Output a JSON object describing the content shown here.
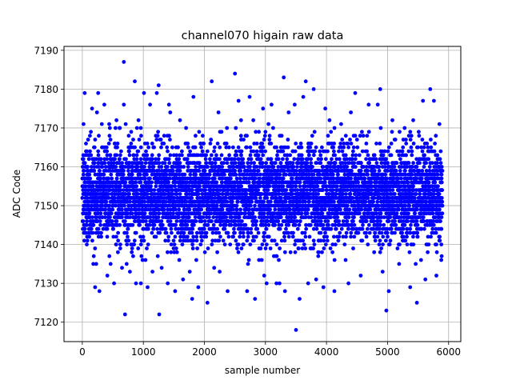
{
  "chart_data": {
    "type": "scatter",
    "title": "channel070 higain raw data",
    "xlabel": "sample number",
    "ylabel": "ADC Code",
    "xlim": [
      -300,
      6200
    ],
    "ylim": [
      7115,
      7191
    ],
    "xticks": [
      0,
      1000,
      2000,
      3000,
      4000,
      5000,
      6000
    ],
    "yticks": [
      7120,
      7130,
      7140,
      7150,
      7160,
      7170,
      7180,
      7190
    ],
    "grid": true,
    "marker_color": "#0000ff",
    "n_samples": 5900,
    "value_range": [
      7118,
      7187
    ],
    "typical_range": [
      7135,
      7170
    ],
    "center": 7153,
    "series": [
      {
        "outliers": [
          {
            "x": 20,
            "y": 7171
          },
          {
            "x": 40,
            "y": 7179
          },
          {
            "x": 60,
            "y": 7166
          },
          {
            "x": 140,
            "y": 7169
          },
          {
            "x": 160,
            "y": 7175
          },
          {
            "x": 180,
            "y": 7135
          },
          {
            "x": 210,
            "y": 7129
          },
          {
            "x": 240,
            "y": 7174
          },
          {
            "x": 260,
            "y": 7179
          },
          {
            "x": 280,
            "y": 7128
          },
          {
            "x": 320,
            "y": 7171
          },
          {
            "x": 360,
            "y": 7176
          },
          {
            "x": 410,
            "y": 7132
          },
          {
            "x": 440,
            "y": 7171
          },
          {
            "x": 520,
            "y": 7130
          },
          {
            "x": 560,
            "y": 7172
          },
          {
            "x": 610,
            "y": 7170
          },
          {
            "x": 650,
            "y": 7134
          },
          {
            "x": 680,
            "y": 7176
          },
          {
            "x": 680,
            "y": 7187
          },
          {
            "x": 700,
            "y": 7122
          },
          {
            "x": 710,
            "y": 7171
          },
          {
            "x": 760,
            "y": 7168
          },
          {
            "x": 780,
            "y": 7133
          },
          {
            "x": 860,
            "y": 7182
          },
          {
            "x": 880,
            "y": 7130
          },
          {
            "x": 920,
            "y": 7172
          },
          {
            "x": 960,
            "y": 7130
          },
          {
            "x": 1010,
            "y": 7179
          },
          {
            "x": 1070,
            "y": 7129
          },
          {
            "x": 1110,
            "y": 7176
          },
          {
            "x": 1150,
            "y": 7133
          },
          {
            "x": 1220,
            "y": 7179
          },
          {
            "x": 1250,
            "y": 7181
          },
          {
            "x": 1260,
            "y": 7122
          },
          {
            "x": 1300,
            "y": 7134
          },
          {
            "x": 1400,
            "y": 7130
          },
          {
            "x": 1420,
            "y": 7176
          },
          {
            "x": 1440,
            "y": 7174
          },
          {
            "x": 1520,
            "y": 7128
          },
          {
            "x": 1600,
            "y": 7172
          },
          {
            "x": 1650,
            "y": 7131
          },
          {
            "x": 1700,
            "y": 7170
          },
          {
            "x": 1760,
            "y": 7133
          },
          {
            "x": 1800,
            "y": 7126
          },
          {
            "x": 1820,
            "y": 7178
          },
          {
            "x": 1900,
            "y": 7129
          },
          {
            "x": 2050,
            "y": 7125
          },
          {
            "x": 2120,
            "y": 7182
          },
          {
            "x": 2160,
            "y": 7134
          },
          {
            "x": 2230,
            "y": 7174
          },
          {
            "x": 2250,
            "y": 7133
          },
          {
            "x": 2380,
            "y": 7128
          },
          {
            "x": 2500,
            "y": 7184
          },
          {
            "x": 2560,
            "y": 7177
          },
          {
            "x": 2600,
            "y": 7172
          },
          {
            "x": 2700,
            "y": 7128
          },
          {
            "x": 2740,
            "y": 7178
          },
          {
            "x": 2800,
            "y": 7172
          },
          {
            "x": 2830,
            "y": 7126
          },
          {
            "x": 2960,
            "y": 7175
          },
          {
            "x": 2980,
            "y": 7132
          },
          {
            "x": 3020,
            "y": 7130
          },
          {
            "x": 3050,
            "y": 7171
          },
          {
            "x": 3100,
            "y": 7176
          },
          {
            "x": 3180,
            "y": 7130
          },
          {
            "x": 3230,
            "y": 7130
          },
          {
            "x": 3300,
            "y": 7183
          },
          {
            "x": 3320,
            "y": 7128
          },
          {
            "x": 3380,
            "y": 7174
          },
          {
            "x": 3480,
            "y": 7176
          },
          {
            "x": 3500,
            "y": 7118
          },
          {
            "x": 3560,
            "y": 7126
          },
          {
            "x": 3620,
            "y": 7178
          },
          {
            "x": 3660,
            "y": 7182
          },
          {
            "x": 3700,
            "y": 7130
          },
          {
            "x": 3790,
            "y": 7180
          },
          {
            "x": 3830,
            "y": 7131
          },
          {
            "x": 3950,
            "y": 7129
          },
          {
            "x": 3980,
            "y": 7175
          },
          {
            "x": 4050,
            "y": 7172
          },
          {
            "x": 4130,
            "y": 7128
          },
          {
            "x": 4240,
            "y": 7171
          },
          {
            "x": 4360,
            "y": 7130
          },
          {
            "x": 4400,
            "y": 7174
          },
          {
            "x": 4470,
            "y": 7179
          },
          {
            "x": 4560,
            "y": 7132
          },
          {
            "x": 4690,
            "y": 7176
          },
          {
            "x": 4840,
            "y": 7176
          },
          {
            "x": 4880,
            "y": 7180
          },
          {
            "x": 4920,
            "y": 7133
          },
          {
            "x": 4980,
            "y": 7123
          },
          {
            "x": 5020,
            "y": 7128
          },
          {
            "x": 5080,
            "y": 7172
          },
          {
            "x": 5190,
            "y": 7135
          },
          {
            "x": 5280,
            "y": 7170
          },
          {
            "x": 5370,
            "y": 7129
          },
          {
            "x": 5420,
            "y": 7172
          },
          {
            "x": 5480,
            "y": 7125
          },
          {
            "x": 5580,
            "y": 7177
          },
          {
            "x": 5620,
            "y": 7131
          },
          {
            "x": 5700,
            "y": 7180
          },
          {
            "x": 5760,
            "y": 7177
          },
          {
            "x": 5800,
            "y": 7132
          },
          {
            "x": 5850,
            "y": 7171
          },
          {
            "x": 5880,
            "y": 7136
          }
        ]
      }
    ]
  }
}
